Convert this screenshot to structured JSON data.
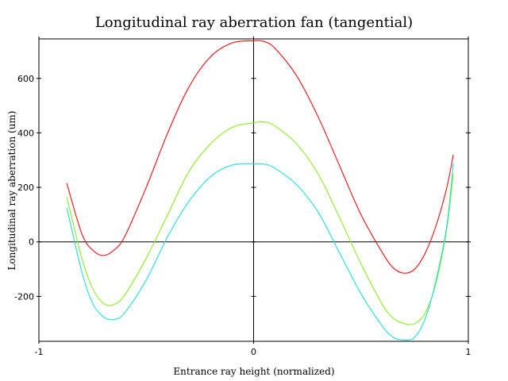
{
  "chart_data": {
    "type": "line",
    "title": "Longitudinal ray aberration fan (tangential)",
    "xlabel": "Entrance ray height (normalized)",
    "ylabel": "Longitudinal ray aberration (um)",
    "xlim": [
      -1,
      1
    ],
    "ylim": [
      -365,
      745
    ],
    "x_ticks": [
      -1,
      0,
      1
    ],
    "x_tick_labels": [
      "-1",
      "0",
      "1"
    ],
    "y_ticks": [
      -200,
      0,
      200,
      400,
      600
    ],
    "y_tick_labels": [
      "-200",
      "0",
      "200",
      "400",
      "600"
    ],
    "grid": false,
    "series": [
      {
        "name": "red",
        "color": "#ee1111",
        "x": [
          -0.87,
          -0.8,
          -0.75,
          -0.7,
          -0.65,
          -0.6,
          -0.5,
          -0.4,
          -0.3,
          -0.2,
          -0.1,
          0.0,
          0.05,
          0.1,
          0.2,
          0.3,
          0.4,
          0.5,
          0.6,
          0.65,
          0.7,
          0.75,
          0.8,
          0.85,
          0.9,
          0.93
        ],
        "values": [
          215,
          30,
          -30,
          -50,
          -30,
          20,
          200,
          400,
          570,
          680,
          730,
          738,
          735,
          710,
          610,
          460,
          280,
          100,
          -40,
          -95,
          -115,
          -100,
          -40,
          60,
          200,
          320
        ]
      },
      {
        "name": "green",
        "color": "#88ee22",
        "x": [
          -0.87,
          -0.8,
          -0.75,
          -0.7,
          -0.65,
          -0.6,
          -0.5,
          -0.4,
          -0.3,
          -0.2,
          -0.1,
          0.0,
          0.05,
          0.1,
          0.2,
          0.3,
          0.4,
          0.5,
          0.6,
          0.65,
          0.7,
          0.75,
          0.8,
          0.85,
          0.9,
          0.93
        ],
        "values": [
          165,
          -60,
          -170,
          -225,
          -230,
          -195,
          -60,
          100,
          260,
          360,
          420,
          437,
          440,
          425,
          360,
          250,
          90,
          -80,
          -230,
          -280,
          -300,
          -300,
          -260,
          -150,
          50,
          250
        ]
      },
      {
        "name": "cyan",
        "color": "#22dddd",
        "x": [
          -0.87,
          -0.8,
          -0.75,
          -0.7,
          -0.65,
          -0.6,
          -0.5,
          -0.4,
          -0.3,
          -0.2,
          -0.1,
          0.0,
          0.05,
          0.1,
          0.2,
          0.3,
          0.4,
          0.5,
          0.6,
          0.65,
          0.7,
          0.75,
          0.8,
          0.85,
          0.9,
          0.93
        ],
        "values": [
          125,
          -110,
          -225,
          -275,
          -285,
          -260,
          -140,
          20,
          150,
          240,
          282,
          287,
          285,
          270,
          210,
          110,
          -40,
          -190,
          -310,
          -350,
          -360,
          -350,
          -280,
          -140,
          60,
          290
        ]
      }
    ]
  }
}
